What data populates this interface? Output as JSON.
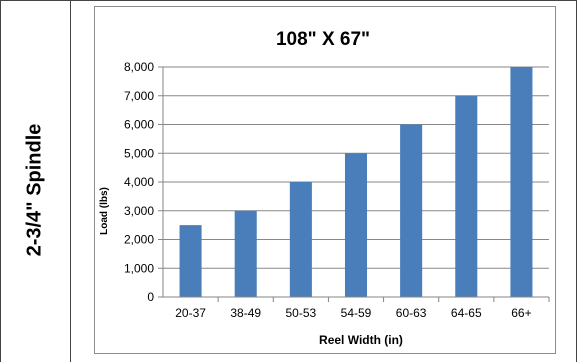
{
  "side_label": "2-3/4\" Spindle",
  "chart_data": {
    "type": "bar",
    "title": "108\" X 67\"",
    "xlabel": "Reel Width (in)",
    "ylabel": "Load (lbs)",
    "categories": [
      "20-37",
      "38-49",
      "50-53",
      "54-59",
      "60-63",
      "64-65",
      "66+"
    ],
    "values": [
      2500,
      3000,
      4000,
      5000,
      6000,
      7000,
      8000
    ],
    "ylim": [
      0,
      8000
    ],
    "yticks": [
      0,
      1000,
      2000,
      3000,
      4000,
      5000,
      6000,
      7000,
      8000
    ],
    "ytick_labels": [
      "0",
      "1,000",
      "2,000",
      "3,000",
      "4,000",
      "5,000",
      "6,000",
      "7,000",
      "8,000"
    ],
    "grid": true,
    "legend": "none",
    "bar_color": "#4a7ebb",
    "grid_color": "#878787"
  }
}
